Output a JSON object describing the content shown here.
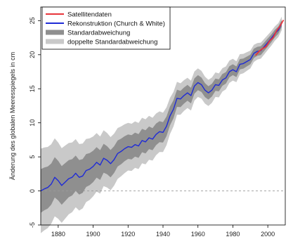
{
  "chart_data": {
    "type": "line",
    "title": "",
    "xlabel": "",
    "ylabel": "Änderung des globalen Meeresspiegels in cm",
    "xlim": [
      1870,
      2010
    ],
    "ylim": [
      -5,
      27
    ],
    "xticks": [
      1880,
      1900,
      1920,
      1940,
      1960,
      1980,
      2000
    ],
    "yticks": [
      -5,
      0,
      5,
      10,
      15,
      20,
      25
    ],
    "grid": false,
    "legend_position": "top-left",
    "reference_line": {
      "y": 0,
      "style": "dashed"
    },
    "legend": [
      {
        "label": "Satellitendaten",
        "color": "#e8343a",
        "kind": "line"
      },
      {
        "label": "Rekonstruktion (Church & White)",
        "color": "#1f2bd6",
        "kind": "line"
      },
      {
        "label": "Standardabweichung",
        "color": "#8f8f8f",
        "kind": "band"
      },
      {
        "label": "doppelte Standardabweichung",
        "color": "#c9c9c9",
        "kind": "band"
      }
    ],
    "series": [
      {
        "name": "Rekonstruktion (Church & White)",
        "color": "#1f2bd6",
        "x": [
          1870,
          1872,
          1874,
          1876,
          1878,
          1880,
          1882,
          1884,
          1886,
          1888,
          1890,
          1892,
          1894,
          1896,
          1898,
          1900,
          1902,
          1904,
          1906,
          1908,
          1910,
          1912,
          1914,
          1916,
          1918,
          1920,
          1922,
          1924,
          1926,
          1928,
          1930,
          1932,
          1934,
          1936,
          1938,
          1940,
          1942,
          1944,
          1946,
          1948,
          1950,
          1952,
          1954,
          1956,
          1958,
          1960,
          1962,
          1964,
          1966,
          1968,
          1970,
          1972,
          1974,
          1976,
          1978,
          1980,
          1982,
          1984,
          1986,
          1988,
          1990,
          1992,
          1994,
          1996,
          1998,
          2000,
          2002,
          2004,
          2006,
          2008
        ],
        "y": [
          0.0,
          0.3,
          0.5,
          1.0,
          2.0,
          1.5,
          0.8,
          1.3,
          1.8,
          2.0,
          2.6,
          2.0,
          2.2,
          3.0,
          3.2,
          3.6,
          4.2,
          3.8,
          4.8,
          4.5,
          4.0,
          4.6,
          5.5,
          5.8,
          6.2,
          6.5,
          6.4,
          6.8,
          6.6,
          7.4,
          7.2,
          7.8,
          7.6,
          8.3,
          8.7,
          8.6,
          9.5,
          11.0,
          12.0,
          13.6,
          13.5,
          14.0,
          14.4,
          14.0,
          15.4,
          15.9,
          15.6,
          14.8,
          14.4,
          14.8,
          15.6,
          15.5,
          16.3,
          16.6,
          17.5,
          17.8,
          17.5,
          18.6,
          18.7,
          19.0,
          19.3,
          20.2,
          20.5,
          20.6,
          21.2,
          21.8,
          22.4,
          23.1,
          23.6,
          24.6
        ]
      },
      {
        "name": "Satellitendaten",
        "color": "#e8343a",
        "x": [
          1993,
          1995,
          1997,
          1999,
          2001,
          2003,
          2005,
          2007,
          2009
        ],
        "y": [
          19.9,
          20.5,
          20.9,
          21.2,
          22.0,
          22.5,
          23.5,
          24.2,
          25.1
        ]
      }
    ],
    "bands": {
      "x": [
        1870,
        1880,
        1890,
        1900,
        1910,
        1920,
        1930,
        1940,
        1950,
        1960,
        1970,
        1980,
        1990,
        2000,
        2008
      ],
      "one_sigma": [
        3.2,
        2.9,
        2.6,
        2.3,
        2.0,
        1.8,
        1.7,
        1.5,
        1.2,
        1.1,
        0.9,
        0.8,
        0.7,
        0.6,
        0.5
      ],
      "two_sigma": [
        6.2,
        5.6,
        5.0,
        4.4,
        3.9,
        3.5,
        3.3,
        2.9,
        2.3,
        2.1,
        1.8,
        1.6,
        1.3,
        1.1,
        1.0
      ]
    }
  }
}
